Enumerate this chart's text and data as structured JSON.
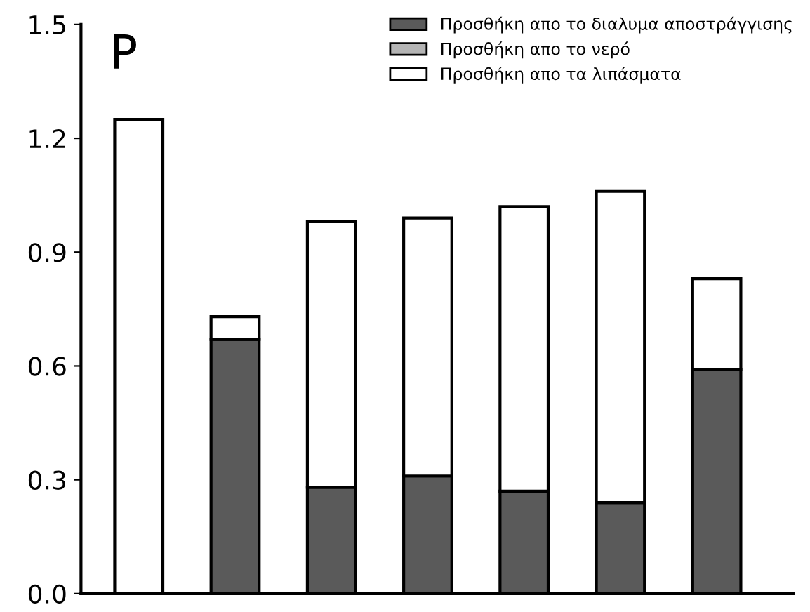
{
  "chart_data": {
    "type": "bar",
    "title": "P",
    "stacked": true,
    "categories": [
      null,
      null,
      null,
      null,
      null,
      null,
      null
    ],
    "series": [
      {
        "name": "Προσθήκη απο το διαλυμα αποστράγγισης",
        "color": "#5a5a5a",
        "values": [
          0,
          0.67,
          0.28,
          0.31,
          0.27,
          0.24,
          0.59
        ]
      },
      {
        "name": "Προσθήκη απο το νερό",
        "color": "#b4b4b4",
        "values": [
          null,
          null,
          null,
          null,
          null,
          null,
          null
        ]
      },
      {
        "name": "Προσθήκη απο τα λιπάσματα",
        "color": "#ffffff",
        "values": [
          1.25,
          0.06,
          0.7,
          0.68,
          0.75,
          0.82,
          0.24
        ]
      }
    ],
    "ylim": [
      0,
      1.5
    ],
    "yticks": [
      {
        "value": 0,
        "label": "0.0"
      },
      0.3,
      0.6,
      0.9,
      1.2,
      1.5
    ],
    "legend": "top right",
    "grid": false
  }
}
